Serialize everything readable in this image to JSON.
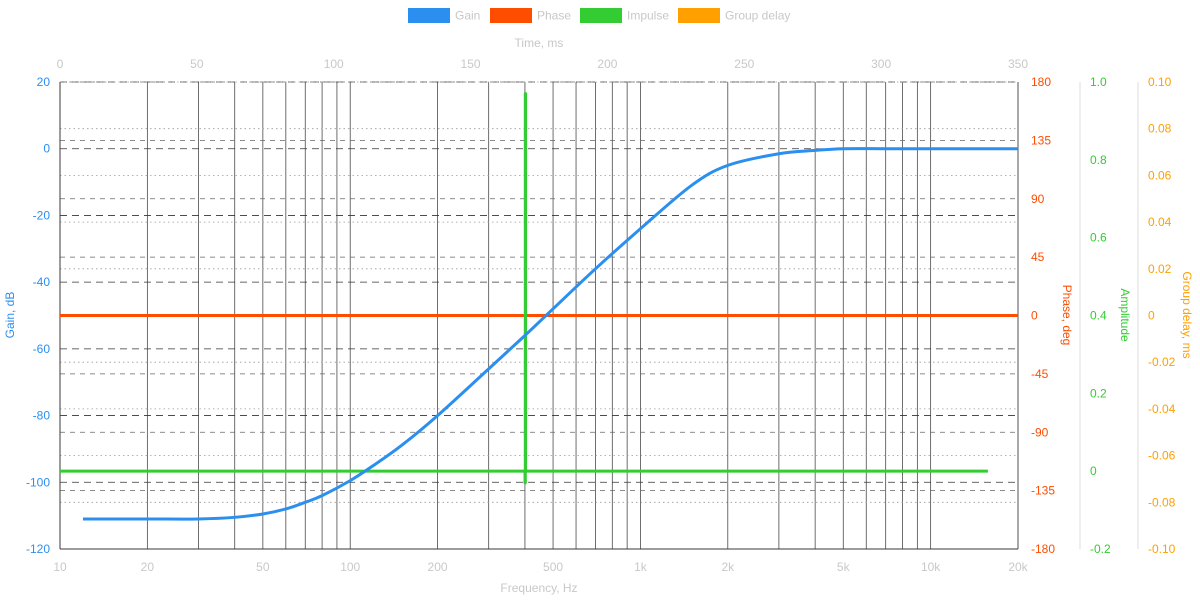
{
  "colors": {
    "gain": "#2b8ff0",
    "phase": "#ff4d00",
    "impulse": "#33cc33",
    "group_delay": "#ffa000",
    "muted": "#c8c8c8"
  },
  "chart_data": {
    "type": "line",
    "legend": {
      "placement": "top-center",
      "entries": [
        {
          "key": "gain",
          "label": "Gain"
        },
        {
          "key": "phase",
          "label": "Phase"
        },
        {
          "key": "impulse",
          "label": "Impulse"
        },
        {
          "key": "group_delay",
          "label": "Group delay"
        }
      ]
    },
    "axes": {
      "x_frequency": {
        "label": "Frequency, Hz",
        "scale": "log",
        "range": [
          10,
          20000
        ],
        "ticks": [
          {
            "value": 10,
            "label": "10"
          },
          {
            "value": 20,
            "label": "20"
          },
          {
            "value": 50,
            "label": "50"
          },
          {
            "value": 100,
            "label": "100"
          },
          {
            "value": 200,
            "label": "200"
          },
          {
            "value": 500,
            "label": "500"
          },
          {
            "value": 1000,
            "label": "1k"
          },
          {
            "value": 2000,
            "label": "2k"
          },
          {
            "value": 5000,
            "label": "5k"
          },
          {
            "value": 10000,
            "label": "10k"
          },
          {
            "value": 20000,
            "label": "20k"
          }
        ]
      },
      "x_time": {
        "label": "Time, ms",
        "scale": "linear",
        "range": [
          0,
          350
        ],
        "ticks": [
          0,
          50,
          100,
          150,
          200,
          250,
          300,
          350
        ]
      },
      "y_gain": {
        "label": "Gain, dB",
        "range": [
          -120,
          20
        ],
        "ticks": [
          20,
          0,
          -20,
          -40,
          -60,
          -80,
          -100,
          -120
        ]
      },
      "y_phase": {
        "label": "Phase, deg",
        "range": [
          -180,
          180
        ],
        "ticks": [
          180,
          135,
          90,
          45,
          0,
          -45,
          -90,
          -135,
          -180
        ]
      },
      "y_amplitude": {
        "label": "Amplitude",
        "range": [
          -0.2,
          1.0
        ],
        "ticks": [
          "1.0",
          "0.8",
          "0.6",
          "0.4",
          "0.2",
          "0",
          "-0.2"
        ]
      },
      "y_group_delay": {
        "label": "Group delay, ms",
        "range": [
          -0.1,
          0.1
        ],
        "ticks": [
          "0.10",
          "0.08",
          "0.06",
          "0.04",
          "0.02",
          "0",
          "-0.02",
          "-0.04",
          "-0.06",
          "-0.08",
          "-0.10"
        ]
      }
    },
    "series": [
      {
        "key": "gain",
        "name": "Gain",
        "x_axis": "x_frequency",
        "y_axis": "y_gain",
        "x": [
          12,
          20,
          30,
          40,
          50,
          60,
          70,
          80,
          100,
          120,
          150,
          200,
          300,
          400,
          500,
          700,
          1000,
          1500,
          2000,
          3000,
          4000,
          5000,
          7000,
          10000,
          20000
        ],
        "y": [
          -111,
          -111,
          -111,
          -110.5,
          -109.5,
          -108,
          -106,
          -104,
          -99.5,
          -95,
          -89,
          -80,
          -66,
          -56,
          -48,
          -36,
          -24,
          -11,
          -5,
          -1.5,
          -0.5,
          0,
          0,
          0,
          0
        ]
      },
      {
        "key": "phase",
        "name": "Phase",
        "x_axis": "x_frequency",
        "y_axis": "y_phase",
        "x": [
          10,
          20000
        ],
        "y": [
          0,
          0
        ]
      },
      {
        "key": "impulse",
        "name": "Impulse",
        "x_axis": "x_time",
        "y_axis": "y_amplitude",
        "x": [
          0,
          169.9,
          169.9,
          170,
          170,
          170.1,
          170.1,
          339
        ],
        "y": [
          0,
          0,
          -0.03,
          -0.03,
          0.97,
          0.97,
          0,
          0
        ]
      }
    ]
  }
}
